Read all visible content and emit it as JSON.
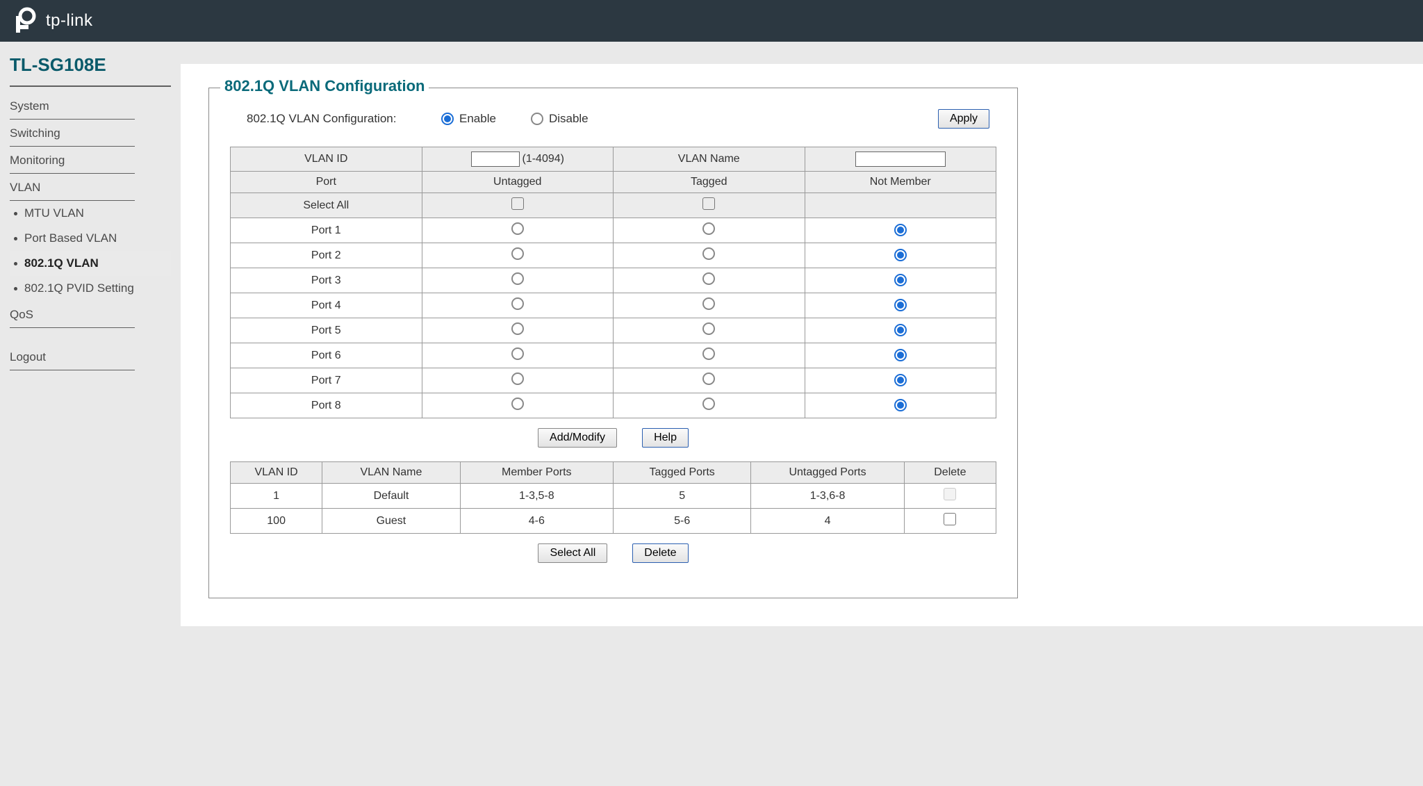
{
  "brand": "tp-link",
  "device_title": "TL-SG108E",
  "sidebar": {
    "items": [
      {
        "label": "System",
        "type": "top"
      },
      {
        "label": "Switching",
        "type": "top"
      },
      {
        "label": "Monitoring",
        "type": "top"
      },
      {
        "label": "VLAN",
        "type": "top"
      },
      {
        "label": "MTU VLAN",
        "type": "sub"
      },
      {
        "label": "Port Based VLAN",
        "type": "sub"
      },
      {
        "label": "802.1Q VLAN",
        "type": "sub",
        "active": true
      },
      {
        "label": "802.1Q PVID Setting",
        "type": "sub"
      },
      {
        "label": "QoS",
        "type": "top"
      },
      {
        "label": "Logout",
        "type": "top",
        "gap": true
      }
    ]
  },
  "panel": {
    "legend": "802.1Q VLAN Configuration",
    "config_label": "802.1Q VLAN Configuration:",
    "enable_label": "Enable",
    "disable_label": "Disable",
    "apply_label": "Apply",
    "vlan_id_header": "VLAN ID",
    "vlan_id_hint": "(1-4094)",
    "vlan_name_header": "VLAN Name",
    "port_header": "Port",
    "untagged_header": "Untagged",
    "tagged_header": "Tagged",
    "notmember_header": "Not Member",
    "select_all_header": "Select All",
    "ports": [
      {
        "name": "Port 1",
        "sel": "notmember"
      },
      {
        "name": "Port 2",
        "sel": "notmember"
      },
      {
        "name": "Port 3",
        "sel": "notmember"
      },
      {
        "name": "Port 4",
        "sel": "notmember"
      },
      {
        "name": "Port 5",
        "sel": "notmember"
      },
      {
        "name": "Port 6",
        "sel": "notmember"
      },
      {
        "name": "Port 7",
        "sel": "notmember"
      },
      {
        "name": "Port 8",
        "sel": "notmember"
      }
    ],
    "add_modify_label": "Add/Modify",
    "help_label": "Help",
    "select_all_btn": "Select All",
    "delete_btn": "Delete"
  },
  "table": {
    "headers": {
      "vlan_id": "VLAN ID",
      "vlan_name": "VLAN Name",
      "member": "Member Ports",
      "tagged": "Tagged Ports",
      "untagged": "Untagged Ports",
      "delete": "Delete"
    },
    "rows": [
      {
        "id": "1",
        "name": "Default",
        "member": "1-3,5-8",
        "tagged": "5",
        "untagged": "1-3,6-8",
        "deletable": false
      },
      {
        "id": "100",
        "name": "Guest",
        "member": "4-6",
        "tagged": "5-6",
        "untagged": "4",
        "deletable": true
      }
    ]
  },
  "colors": {
    "topbar": "#2c3841",
    "accent": "#0a6a7a",
    "radio_checked": "#1a6dd6",
    "bg": "#e9e9e9"
  }
}
